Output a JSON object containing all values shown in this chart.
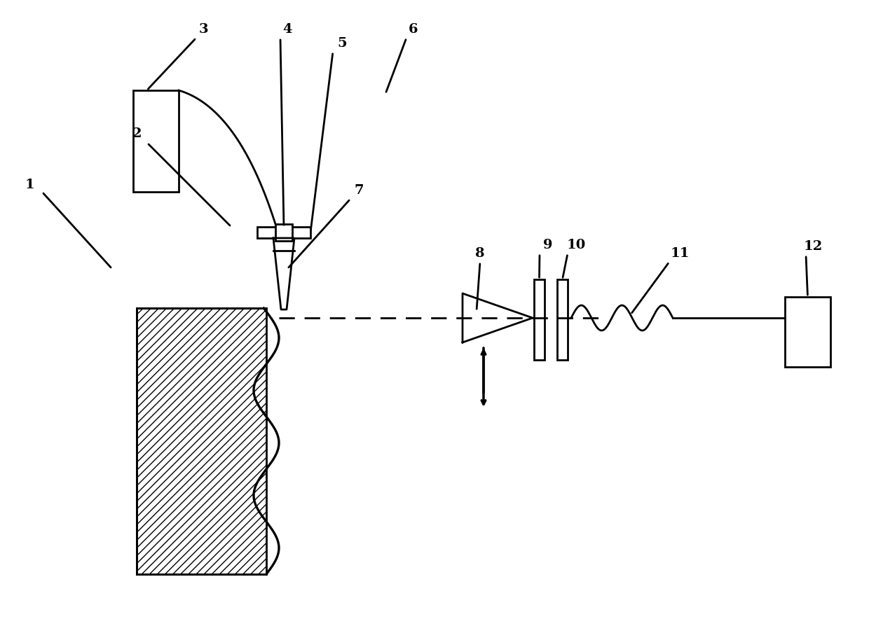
{
  "bg_color": "#ffffff",
  "line_color": "#000000",
  "line_width": 2.0,
  "label_fontsize": 13,
  "label_fontweight": "bold",
  "fig_width": 12.4,
  "fig_height": 8.84,
  "dpi": 100
}
